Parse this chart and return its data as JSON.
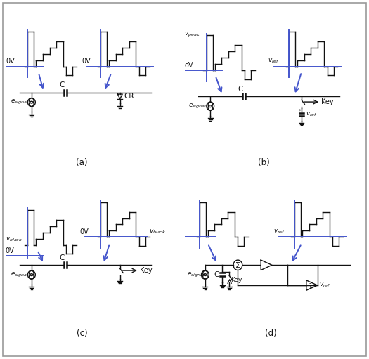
{
  "blue_color": "#4455cc",
  "black_color": "#111111",
  "bg_color": "#ffffff",
  "border_color": "#999999",
  "fig_width": 5.25,
  "fig_height": 5.11,
  "panel_labels": [
    "(a)",
    "(b)",
    "(c)",
    "(d)"
  ]
}
